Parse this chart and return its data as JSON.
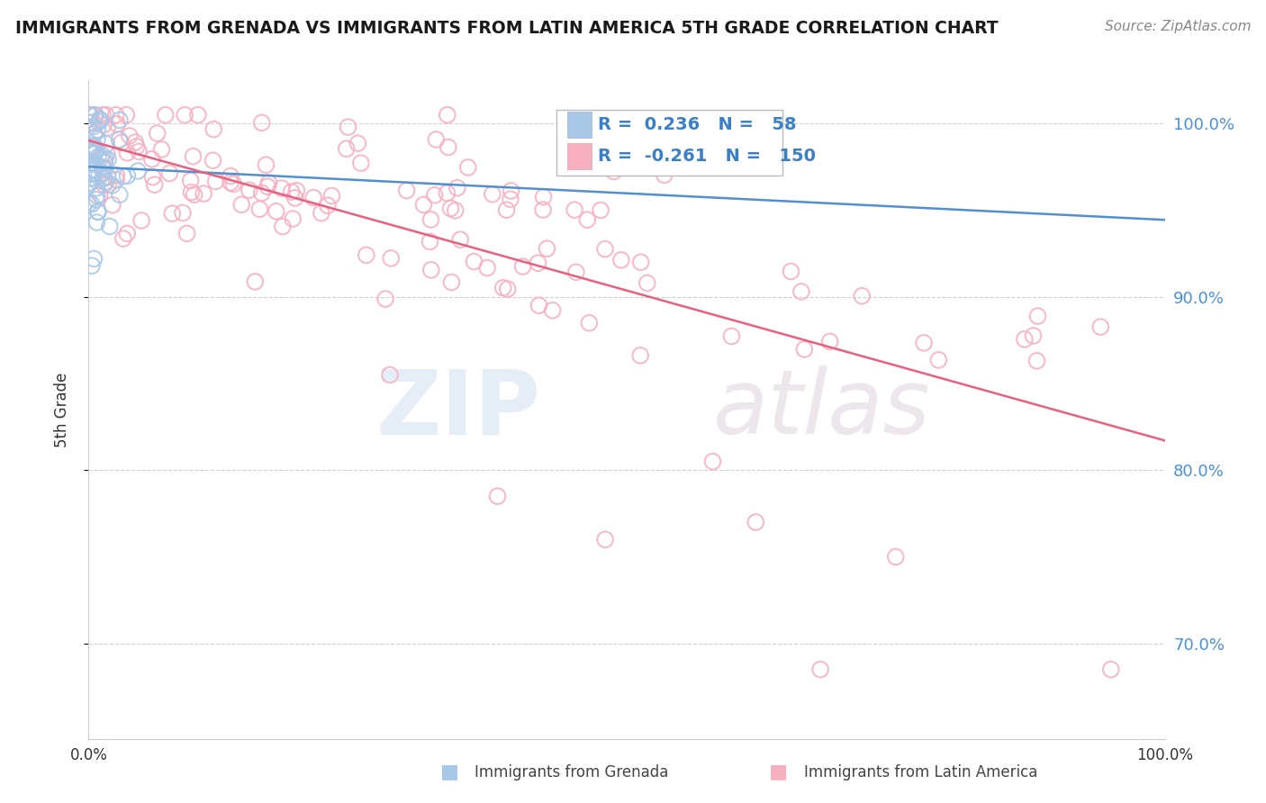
{
  "title": "IMMIGRANTS FROM GRENADA VS IMMIGRANTS FROM LATIN AMERICA 5TH GRADE CORRELATION CHART",
  "source": "Source: ZipAtlas.com",
  "ylabel": "5th Grade",
  "legend_grenada": "Immigrants from Grenada",
  "legend_latin": "Immigrants from Latin America",
  "R_grenada": 0.236,
  "N_grenada": 58,
  "R_latin": -0.261,
  "N_latin": 150,
  "color_grenada": "#a8c8e8",
  "color_latin": "#f8b0c0",
  "color_trendline_grenada": "#5090d0",
  "color_trendline_latin": "#e86080",
  "background_color": "#ffffff",
  "grid_color": "#d0d0d0",
  "xlim": [
    0.0,
    1.0
  ],
  "ylim": [
    0.645,
    1.025
  ],
  "yticks": [
    0.7,
    0.8,
    0.9,
    1.0
  ],
  "ytick_labels": [
    "70.0%",
    "80.0%",
    "90.0%",
    "100.0%"
  ]
}
